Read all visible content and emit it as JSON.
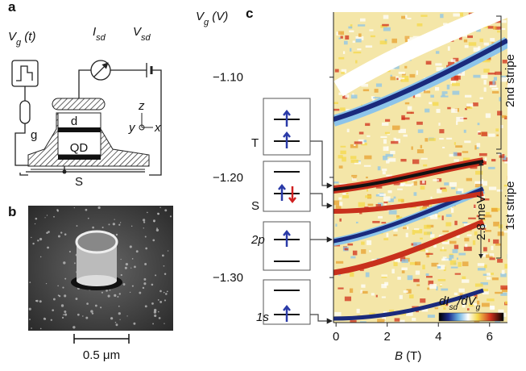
{
  "panel_a": {
    "label": "a",
    "vg_t": {
      "v": "V",
      "sub": "g",
      "after": " (t)"
    },
    "isd": {
      "v": "I",
      "sub": "sd"
    },
    "vsd": {
      "v": "V",
      "sub": "sd"
    },
    "gate": "g",
    "drain": "d",
    "dot": "QD",
    "source": "S",
    "axes": {
      "z": "z",
      "y": "y",
      "x": "x"
    }
  },
  "panel_b": {
    "label": "b",
    "scale_bar": "0.5 μm"
  },
  "panel_c": {
    "label": "c",
    "y_axis_label": {
      "v": "V",
      "sub": "g",
      "after": " (V)"
    },
    "x_axis_label": {
      "v": "B",
      "after": " (T)"
    },
    "ylim": [
      -1.345,
      -1.035
    ],
    "yticks": [
      {
        "value": -1.1,
        "label": "−1.10"
      },
      {
        "value": -1.2,
        "label": "−1.20"
      },
      {
        "value": -1.3,
        "label": "−1.30"
      }
    ],
    "xlim": [
      -0.1,
      6.7
    ],
    "xticks": [
      0,
      2,
      4,
      6
    ],
    "states": [
      "T",
      "S",
      "2p",
      "1s"
    ],
    "stripes": [
      "2nd stripe",
      "1st stripe"
    ],
    "energy": "2.8 meV",
    "colorbar_label": {
      "a": "dI",
      "sub1": "sd",
      "b": "/dV",
      "sub2": "g"
    }
  }
}
